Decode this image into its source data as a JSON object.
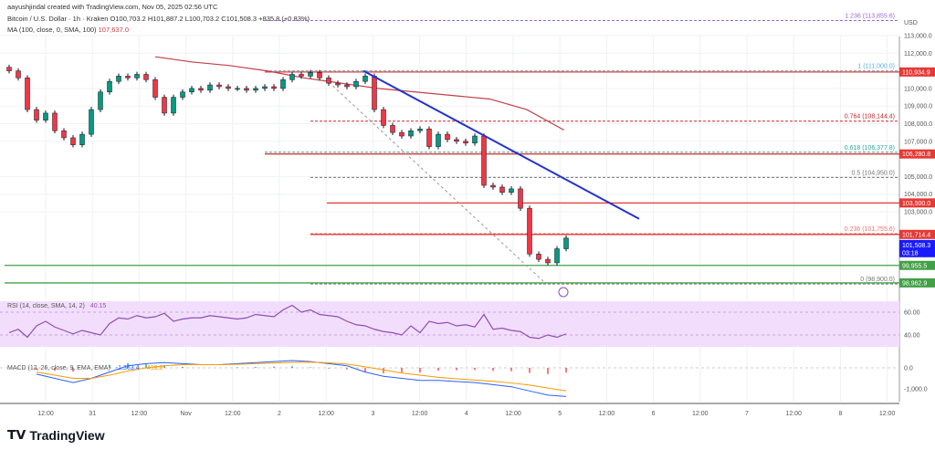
{
  "header": {
    "credit": "aayushjindal created with TradingView.com, Nov 05, 2025 02:56 UTC",
    "symbol_line": "Bitcoin / U.S. Dollar · 1h · Kraken  O100,703.2  H101,887.2  L100,703.2  C101,508.3  +835.8 (+0.83%)",
    "ma_label": "MA (100, close, 0, SMA, 100)",
    "ma_value": "107,637.0"
  },
  "currency": "USD",
  "logo": "TradingView",
  "colors": {
    "up": "#089981",
    "down": "#f23645",
    "candle": "#131722",
    "red_line": "#d32f2f",
    "green_line": "#43a047",
    "trend": "#2233cc",
    "ma": "#c0404a",
    "rsi": "#8e4fb3",
    "rsi_bg": "#f2defc",
    "current_price_bg": "#1a1aff"
  },
  "chart_data": {
    "type": "candlestick",
    "price_ticks": [
      "113,000.0",
      "112,000.0",
      "110,000.0",
      "109,000.0",
      "108,000.0",
      "107,000.0",
      "105,000.0",
      "104,000.0",
      "103,000.0"
    ],
    "price_tick_values": [
      113000,
      112000,
      110000,
      109000,
      108000,
      107000,
      105000,
      104000,
      103000
    ],
    "time_ticks": [
      "12:00",
      "31",
      "12:00",
      "Nov",
      "12:00",
      "2",
      "12:00",
      "3",
      "12:00",
      "4",
      "12:00",
      "5",
      "12:00",
      "6",
      "12:00",
      "7",
      "12:00",
      "8",
      "12:00"
    ],
    "closes": [
      111000,
      110600,
      108800,
      108200,
      108600,
      107600,
      107200,
      106800,
      107400,
      108800,
      109800,
      110400,
      110700,
      110600,
      110800,
      110500,
      109500,
      108600,
      109500,
      109800,
      110000,
      109900,
      110200,
      110100,
      110000,
      110000,
      109900,
      110000,
      110100,
      110000,
      110500,
      110800,
      110700,
      110900,
      110600,
      110300,
      110200,
      110100,
      110400,
      110700,
      108800,
      107900,
      107500,
      107300,
      107600,
      107700,
      106700,
      107400,
      107100,
      107000,
      106900,
      107300,
      104500,
      104400,
      104100,
      104300,
      103200,
      100600,
      100300,
      100100,
      100900,
      101508.3
    ],
    "ma100": [
      111800,
      111500,
      111300,
      111000,
      110600,
      110300,
      110000,
      109800,
      109600,
      109400,
      108800,
      107637
    ],
    "levels": [
      {
        "label": "1.236 (113,855.6)",
        "price": 113855.6,
        "style": "fib",
        "color": "#9c6ad0"
      },
      {
        "label": "1 (111,000.0)",
        "price": 111000,
        "style": "fib",
        "color": "#5ab0d8"
      },
      {
        "label": "0.764 (108,144.4)",
        "price": 108144.4,
        "style": "fib",
        "color": "#c62828"
      },
      {
        "label": "0.618 (106,377.8)",
        "price": 106377.8,
        "style": "fib",
        "color": "#26a69a"
      },
      {
        "label": "0.5 (104,950.0)",
        "price": 104950,
        "style": "fib",
        "color": "#777777"
      },
      {
        "label": "0.236 (101,755.6)",
        "price": 101755.6,
        "style": "fib",
        "color": "#e57373"
      },
      {
        "label": "0 (98,900.0)",
        "price": 98900,
        "style": "fib",
        "color": "#777777"
      }
    ],
    "price_tags": [
      {
        "text": "110,934.9",
        "price": 110934.9,
        "color": "#e53935"
      },
      {
        "text": "106,280.8",
        "price": 106280.8,
        "color": "#e53935"
      },
      {
        "text": "103,500.0",
        "price": 103500,
        "color": "#e53935"
      },
      {
        "text": "101,714.4",
        "price": 101714.4,
        "color": "#e53935"
      },
      {
        "text": "99,955.5",
        "price": 99955.5,
        "color": "#43a047"
      },
      {
        "text": "98,962.9",
        "price": 98962.9,
        "color": "#43a047"
      }
    ],
    "current_price": {
      "text": "101,508.3",
      "countdown": "03:18"
    },
    "trendline": {
      "from": [
        111000,
        "Nov 3 00:00"
      ],
      "to": [
        102600,
        "Nov 5 20:00"
      ]
    },
    "rsi": {
      "label": "RSI (14, close, SMA, 14, 2)",
      "value": "40.15",
      "ticks": [
        "60.00",
        "40.00"
      ],
      "values": [
        42,
        45,
        38,
        48,
        52,
        47,
        44,
        41,
        44,
        42,
        40,
        50,
        55,
        54,
        57,
        55,
        56,
        59,
        52,
        54,
        55,
        55,
        57,
        56,
        55,
        54,
        55,
        58,
        57,
        56,
        62,
        66,
        60,
        62,
        58,
        57,
        56,
        52,
        49,
        48,
        45,
        43,
        42,
        40,
        48,
        42,
        52,
        50,
        51,
        48,
        49,
        47,
        58,
        45,
        46,
        44,
        43,
        38,
        37,
        40,
        38,
        41
      ]
    },
    "macd": {
      "label": "MACD (12, 26, close, 9, EMA, EMA)",
      "values_text": [
        "-1,363.4",
        "-419.9"
      ],
      "ticks": [
        "0.0",
        "-1,000.0"
      ],
      "macd": [
        -300,
        -500,
        -700,
        -500,
        -200,
        100,
        200,
        250,
        200,
        150,
        150,
        200,
        250,
        300,
        350,
        300,
        200,
        100,
        -200,
        -400,
        -500,
        -600,
        -600,
        -650,
        -700,
        -800,
        -900,
        -1100,
        -1300,
        -1363
      ],
      "signal": [
        -200,
        -350,
        -500,
        -500,
        -350,
        -150,
        0,
        100,
        150,
        150,
        150,
        170,
        200,
        230,
        260,
        270,
        240,
        180,
        50,
        -100,
        -250,
        -350,
        -450,
        -520,
        -580,
        -640,
        -720,
        -820,
        -960,
        -1100
      ]
    }
  }
}
